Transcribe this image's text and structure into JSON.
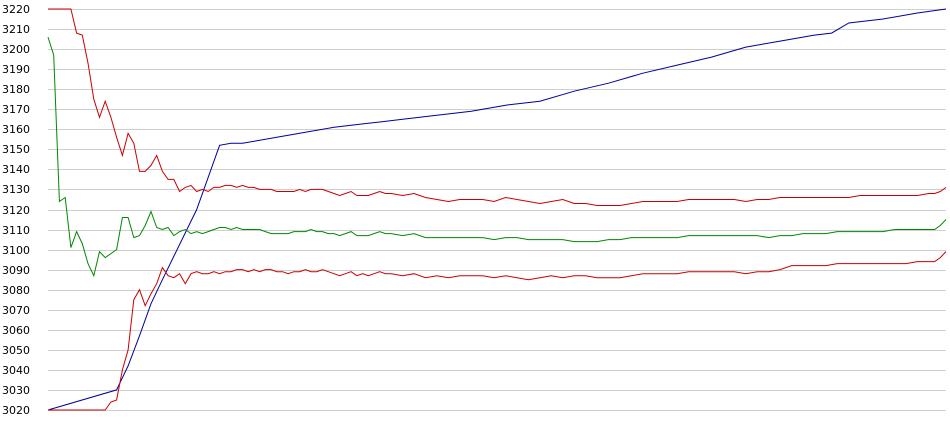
{
  "chart_data": {
    "type": "line",
    "title": "",
    "xlabel": "",
    "ylabel": "",
    "ylim": [
      3020,
      3220
    ],
    "xlim": [
      0,
      157
    ],
    "yticks": [
      3020,
      3030,
      3040,
      3050,
      3060,
      3070,
      3080,
      3090,
      3100,
      3110,
      3120,
      3130,
      3140,
      3150,
      3160,
      3170,
      3180,
      3190,
      3200,
      3210,
      3220
    ],
    "grid": true,
    "legend": "none",
    "series": [
      {
        "color": "#000099",
        "x": [
          0,
          12,
          14,
          16,
          18,
          20,
          26,
          30,
          32,
          34,
          40,
          44,
          50,
          56,
          62,
          68,
          74,
          80,
          86,
          92,
          98,
          104,
          110,
          116,
          122,
          128,
          134,
          137,
          140,
          146,
          152,
          157
        ],
        "values": [
          3020,
          3030,
          3042,
          3057,
          3073,
          3085,
          3120,
          3152,
          3153,
          3153,
          3156,
          3158,
          3161,
          3163,
          3165,
          3167,
          3169,
          3172,
          3174,
          3179,
          3183,
          3188,
          3192,
          3196,
          3201,
          3204,
          3207,
          3208,
          3213,
          3215,
          3218,
          3220
        ]
      },
      {
        "color": "#cc0000",
        "x": [
          0,
          1,
          2,
          3,
          4,
          5,
          6,
          7,
          8,
          9,
          10,
          11,
          12,
          13,
          14,
          15,
          16,
          17,
          18,
          19,
          20,
          21,
          22,
          23,
          24,
          25,
          26,
          27,
          28,
          29,
          30,
          31,
          32,
          33,
          34,
          35,
          36,
          37,
          38,
          39,
          40,
          41,
          42,
          43,
          44,
          45,
          46,
          47,
          48,
          49,
          50,
          51,
          52,
          53,
          54,
          55,
          56,
          57,
          58,
          59,
          60,
          62,
          64,
          66,
          68,
          70,
          72,
          74,
          76,
          78,
          80,
          82,
          84,
          86,
          88,
          90,
          92,
          94,
          96,
          98,
          100,
          102,
          104,
          106,
          108,
          110,
          112,
          114,
          116,
          118,
          120,
          122,
          124,
          126,
          128,
          130,
          132,
          134,
          136,
          138,
          140,
          142,
          144,
          146,
          148,
          150,
          152,
          154,
          155,
          156,
          157
        ],
        "values": [
          3220,
          3220,
          3220,
          3220,
          3220,
          3208,
          3207,
          3193,
          3175,
          3166,
          3174,
          3166,
          3156,
          3147,
          3158,
          3153,
          3139,
          3139,
          3142,
          3147,
          3139,
          3135,
          3135,
          3129,
          3131,
          3132,
          3129,
          3130,
          3129,
          3131,
          3131,
          3132,
          3132,
          3131,
          3132,
          3131,
          3131,
          3130,
          3130,
          3130,
          3129,
          3129,
          3129,
          3129,
          3130,
          3129,
          3130,
          3130,
          3130,
          3129,
          3128,
          3127,
          3128,
          3129,
          3127,
          3127,
          3127,
          3128,
          3129,
          3128,
          3128,
          3127,
          3128,
          3126,
          3125,
          3124,
          3125,
          3125,
          3125,
          3124,
          3126,
          3125,
          3124,
          3123,
          3124,
          3125,
          3123,
          3123,
          3122,
          3122,
          3122,
          3123,
          3124,
          3124,
          3124,
          3124,
          3125,
          3125,
          3125,
          3125,
          3125,
          3124,
          3125,
          3125,
          3126,
          3126,
          3126,
          3126,
          3126,
          3126,
          3126,
          3127,
          3127,
          3127,
          3127,
          3127,
          3127,
          3128,
          3128,
          3129,
          3131
        ]
      },
      {
        "color": "#008800",
        "x": [
          0,
          1,
          2,
          3,
          4,
          5,
          6,
          7,
          8,
          9,
          10,
          11,
          12,
          13,
          14,
          15,
          16,
          17,
          18,
          19,
          20,
          21,
          22,
          23,
          24,
          25,
          26,
          27,
          28,
          29,
          30,
          31,
          32,
          33,
          34,
          35,
          36,
          37,
          38,
          39,
          40,
          41,
          42,
          43,
          44,
          45,
          46,
          47,
          48,
          49,
          50,
          51,
          52,
          53,
          54,
          55,
          56,
          57,
          58,
          59,
          60,
          62,
          64,
          66,
          68,
          70,
          72,
          74,
          76,
          78,
          80,
          82,
          84,
          86,
          88,
          90,
          92,
          94,
          96,
          98,
          100,
          102,
          104,
          106,
          108,
          110,
          112,
          114,
          116,
          118,
          120,
          122,
          124,
          126,
          128,
          130,
          132,
          134,
          136,
          138,
          140,
          142,
          144,
          146,
          148,
          150,
          152,
          154,
          155,
          156,
          157
        ],
        "values": [
          3206,
          3197,
          3124,
          3126,
          3101,
          3109,
          3103,
          3093,
          3087,
          3099,
          3096,
          3098,
          3100,
          3116,
          3116,
          3106,
          3107,
          3112,
          3119,
          3111,
          3110,
          3111,
          3107,
          3109,
          3110,
          3108,
          3109,
          3108,
          3109,
          3110,
          3111,
          3111,
          3110,
          3111,
          3110,
          3110,
          3110,
          3110,
          3109,
          3108,
          3108,
          3108,
          3108,
          3109,
          3109,
          3109,
          3110,
          3109,
          3109,
          3108,
          3108,
          3107,
          3108,
          3109,
          3107,
          3107,
          3107,
          3108,
          3109,
          3108,
          3108,
          3107,
          3108,
          3106,
          3106,
          3106,
          3106,
          3106,
          3106,
          3105,
          3106,
          3106,
          3105,
          3105,
          3105,
          3105,
          3104,
          3104,
          3104,
          3105,
          3105,
          3106,
          3106,
          3106,
          3106,
          3106,
          3107,
          3107,
          3107,
          3107,
          3107,
          3107,
          3107,
          3106,
          3107,
          3107,
          3108,
          3108,
          3108,
          3109,
          3109,
          3109,
          3109,
          3109,
          3110,
          3110,
          3110,
          3110,
          3110,
          3112,
          3115
        ]
      },
      {
        "color": "#cc0000",
        "x": [
          0,
          1,
          2,
          3,
          4,
          5,
          6,
          7,
          8,
          9,
          10,
          11,
          12,
          13,
          14,
          15,
          16,
          17,
          18,
          19,
          20,
          21,
          22,
          23,
          24,
          25,
          26,
          27,
          28,
          29,
          30,
          31,
          32,
          33,
          34,
          35,
          36,
          37,
          38,
          39,
          40,
          41,
          42,
          43,
          44,
          45,
          46,
          47,
          48,
          49,
          50,
          51,
          52,
          53,
          54,
          55,
          56,
          57,
          58,
          59,
          60,
          62,
          64,
          66,
          68,
          70,
          72,
          74,
          76,
          78,
          80,
          82,
          84,
          86,
          88,
          90,
          92,
          94,
          96,
          98,
          100,
          102,
          104,
          106,
          108,
          110,
          112,
          114,
          116,
          118,
          120,
          122,
          124,
          126,
          128,
          130,
          132,
          134,
          136,
          138,
          140,
          142,
          144,
          146,
          148,
          150,
          152,
          154,
          155,
          156,
          157
        ],
        "values": [
          3020,
          3020,
          3020,
          3020,
          3020,
          3020,
          3020,
          3020,
          3020,
          3020,
          3020,
          3024,
          3025,
          3040,
          3050,
          3075,
          3080,
          3072,
          3078,
          3083,
          3091,
          3087,
          3086,
          3088,
          3083,
          3088,
          3089,
          3088,
          3088,
          3089,
          3088,
          3089,
          3089,
          3090,
          3090,
          3089,
          3090,
          3089,
          3090,
          3090,
          3089,
          3089,
          3088,
          3089,
          3089,
          3090,
          3089,
          3089,
          3090,
          3089,
          3088,
          3087,
          3088,
          3089,
          3087,
          3088,
          3087,
          3088,
          3089,
          3088,
          3088,
          3087,
          3088,
          3086,
          3087,
          3086,
          3087,
          3087,
          3087,
          3086,
          3087,
          3086,
          3085,
          3086,
          3087,
          3086,
          3087,
          3087,
          3086,
          3086,
          3086,
          3087,
          3088,
          3088,
          3088,
          3088,
          3089,
          3089,
          3089,
          3089,
          3089,
          3088,
          3089,
          3089,
          3090,
          3092,
          3092,
          3092,
          3092,
          3093,
          3093,
          3093,
          3093,
          3093,
          3093,
          3093,
          3094,
          3094,
          3094,
          3096,
          3099
        ]
      }
    ]
  }
}
